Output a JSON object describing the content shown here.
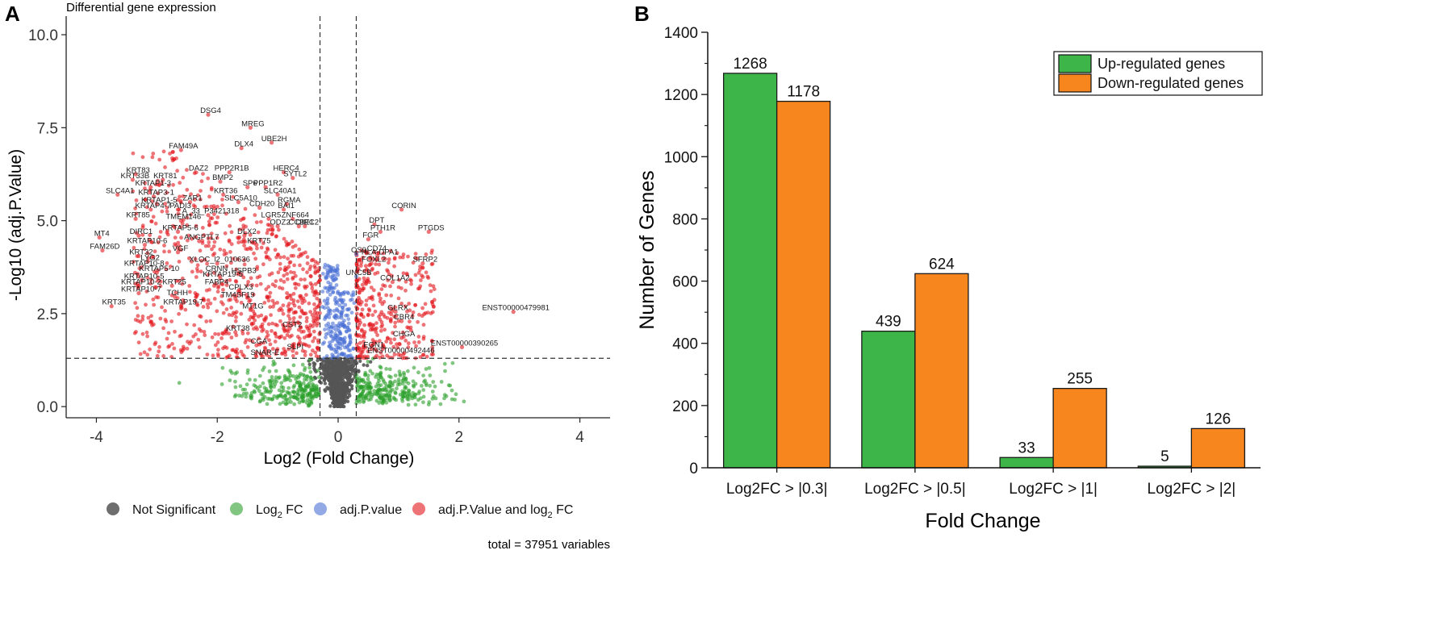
{
  "panels": {
    "a": {
      "label": "A",
      "title": "Differential gene expression",
      "xlabel": "Log2 (Fold Change)",
      "ylabel": "-Log10 (adj.P.Value)",
      "caption": "total = 37951 variables",
      "legend": [
        {
          "key": "ns",
          "label": "Not Significant",
          "color": "#555555"
        },
        {
          "key": "fc",
          "label": "Log",
          "sub": "2",
          "suffix": " FC",
          "color": "#2ca02c"
        },
        {
          "key": "p",
          "label": "adj.P.value",
          "color": "#4a6fd6"
        },
        {
          "key": "both",
          "label": "adj.P.Value and log",
          "sub": "2",
          "suffix": " FC",
          "color": "#e3151c"
        }
      ]
    },
    "b": {
      "label": "B",
      "legend": [
        "Up-regulated genes",
        "Down-regulated genes"
      ]
    }
  },
  "chart_data": [
    {
      "type": "scatter",
      "title": "Differential gene expression",
      "xlabel": "Log2 (Fold Change)",
      "ylabel": "-Log10 (adj.P.Value)",
      "xlim": [
        -4.5,
        4.5
      ],
      "ylim": [
        -0.3,
        10.5
      ],
      "xticks": [
        -4,
        -2,
        0,
        2,
        4
      ],
      "xtick_labels": [
        "-4",
        "-2",
        "0",
        "2",
        "4"
      ],
      "yticks": [
        0.0,
        2.5,
        5.0,
        7.5,
        10.0
      ],
      "ytick_labels": [
        "0.0",
        "2.5",
        "5.0",
        "7.5",
        "10.0"
      ],
      "fc_cutoff": 0.3,
      "p_cutoff": 1.3,
      "total_variables": 37951,
      "labeled_genes": [
        {
          "gene": "DSG4",
          "x": -2.15,
          "y": 7.85
        },
        {
          "gene": "MREG",
          "x": -1.45,
          "y": 7.5
        },
        {
          "gene": "UBE2H",
          "x": -1.1,
          "y": 7.1
        },
        {
          "gene": "DLX4",
          "x": -1.6,
          "y": 6.95
        },
        {
          "gene": "FAM49A",
          "x": -2.6,
          "y": 6.9
        },
        {
          "gene": "HERC4",
          "x": -0.9,
          "y": 6.3
        },
        {
          "gene": "DAZ2",
          "x": -2.35,
          "y": 6.3
        },
        {
          "gene": "PPP2R1B",
          "x": -1.8,
          "y": 6.3
        },
        {
          "gene": "KRT83",
          "x": -3.35,
          "y": 6.25
        },
        {
          "gene": "KRT33B",
          "x": -3.4,
          "y": 6.1
        },
        {
          "gene": "KRT81",
          "x": -2.9,
          "y": 6.1
        },
        {
          "gene": "SYTL2",
          "x": -0.75,
          "y": 6.15
        },
        {
          "gene": "BMP2",
          "x": -1.95,
          "y": 6.05
        },
        {
          "gene": "SP6",
          "x": -1.5,
          "y": 5.9
        },
        {
          "gene": "PPP1R2",
          "x": -1.2,
          "y": 5.9
        },
        {
          "gene": "KRTAP1-3",
          "x": -3.1,
          "y": 5.9
        },
        {
          "gene": "KRT36",
          "x": -1.9,
          "y": 5.7
        },
        {
          "gene": "SLC40A1",
          "x": -1.0,
          "y": 5.7
        },
        {
          "gene": "SLC4A1",
          "x": -3.65,
          "y": 5.7
        },
        {
          "gene": "KRTAP3-1",
          "x": -3.05,
          "y": 5.65
        },
        {
          "gene": "ZAR1",
          "x": -2.45,
          "y": 5.5
        },
        {
          "gene": "SLC5A10",
          "x": -1.65,
          "y": 5.5
        },
        {
          "gene": "RGMA",
          "x": -0.85,
          "y": 5.45
        },
        {
          "gene": "KRTAP1-5",
          "x": -3.0,
          "y": 5.45
        },
        {
          "gene": "CDH20",
          "x": -1.3,
          "y": 5.35
        },
        {
          "gene": "BAI1",
          "x": -0.9,
          "y": 5.3
        },
        {
          "gene": "KRTAP4-7",
          "x": -3.1,
          "y": 5.3
        },
        {
          "gene": "PADI3",
          "x": -2.65,
          "y": 5.3
        },
        {
          "gene": "CORIN",
          "x": 1.05,
          "y": 5.3
        },
        {
          "gene": "A_33_P3421318",
          "x": -2.15,
          "y": 5.15
        },
        {
          "gene": "LGR5",
          "x": -1.15,
          "y": 5.05
        },
        {
          "gene": "ZNF664",
          "x": -0.75,
          "y": 5.05
        },
        {
          "gene": "KRT85",
          "x": -3.35,
          "y": 5.05
        },
        {
          "gene": "TMEM146",
          "x": -2.6,
          "y": 5.0
        },
        {
          "gene": "DPT",
          "x": 0.6,
          "y": 4.9
        },
        {
          "gene": "ODZ2",
          "x": -1.0,
          "y": 4.85
        },
        {
          "gene": "CCBE1",
          "x": -0.65,
          "y": 4.85
        },
        {
          "gene": "DIRC2",
          "x": -0.55,
          "y": 4.85
        },
        {
          "gene": "PTGDS",
          "x": 1.5,
          "y": 4.7
        },
        {
          "gene": "PTH1R",
          "x": 0.7,
          "y": 4.7
        },
        {
          "gene": "KRTAP5-6",
          "x": -2.65,
          "y": 4.7
        },
        {
          "gene": "DLX2",
          "x": -1.55,
          "y": 4.6
        },
        {
          "gene": "MT4",
          "x": -3.95,
          "y": 4.55
        },
        {
          "gene": "DIRC1",
          "x": -3.3,
          "y": 4.6
        },
        {
          "gene": "FGR",
          "x": 0.5,
          "y": 4.5
        },
        {
          "gene": "ANGPTL7",
          "x": -2.3,
          "y": 4.45
        },
        {
          "gene": "KRTAP10-6",
          "x": -3.2,
          "y": 4.35
        },
        {
          "gene": "KRT75",
          "x": -1.35,
          "y": 4.35
        },
        {
          "gene": "FAM26D",
          "x": -3.9,
          "y": 4.2
        },
        {
          "gene": "VGF",
          "x": -2.65,
          "y": 4.15
        },
        {
          "gene": "CD74",
          "x": 0.6,
          "y": 4.15
        },
        {
          "gene": "SFRP2",
          "x": 1.4,
          "y": 3.85
        },
        {
          "gene": "OS9",
          "x": 0.3,
          "y": 4.1
        },
        {
          "gene": "HLA-DPA1",
          "x": 0.65,
          "y": 4.05
        },
        {
          "gene": "KRT32",
          "x": -3.3,
          "y": 4.05
        },
        {
          "gene": "LYG2",
          "x": -3.15,
          "y": 3.9
        },
        {
          "gene": "FOXL2",
          "x": 0.55,
          "y": 3.85
        },
        {
          "gene": "XLOC_l2_010636",
          "x": -2.0,
          "y": 3.85
        },
        {
          "gene": "KRTAP10-8",
          "x": -3.25,
          "y": 3.75
        },
        {
          "gene": "CRNN",
          "x": -2.05,
          "y": 3.6
        },
        {
          "gene": "KRTAP5-10",
          "x": -3.0,
          "y": 3.6
        },
        {
          "gene": "UNC5B",
          "x": 0.3,
          "y": 3.5
        },
        {
          "gene": "HSPB3",
          "x": -1.6,
          "y": 3.55
        },
        {
          "gene": "COL1A2",
          "x": 0.9,
          "y": 3.35
        },
        {
          "gene": "KRTAP19-5",
          "x": -1.95,
          "y": 3.45
        },
        {
          "gene": "KRTAP10-5",
          "x": -3.25,
          "y": 3.4
        },
        {
          "gene": "FABP4",
          "x": -2.05,
          "y": 3.25
        },
        {
          "gene": "KRTAP10-2",
          "x": -3.3,
          "y": 3.25
        },
        {
          "gene": "KRT25",
          "x": -2.75,
          "y": 3.25
        },
        {
          "gene": "CPLX3",
          "x": -1.65,
          "y": 3.1
        },
        {
          "gene": "KRTAP10-7",
          "x": -3.3,
          "y": 3.05
        },
        {
          "gene": "TCHH",
          "x": -2.7,
          "y": 2.95
        },
        {
          "gene": "TM4SF19",
          "x": -1.7,
          "y": 2.9
        },
        {
          "gene": "KRTAP19-7",
          "x": -2.6,
          "y": 2.7
        },
        {
          "gene": "KRT35",
          "x": -3.75,
          "y": 2.7
        },
        {
          "gene": "ENST00000479981",
          "x": 2.9,
          "y": 2.55
        },
        {
          "gene": "MT1G",
          "x": -1.45,
          "y": 2.6
        },
        {
          "gene": "GLRX",
          "x": 0.95,
          "y": 2.55
        },
        {
          "gene": "CBR4",
          "x": 1.05,
          "y": 2.3
        },
        {
          "gene": "CST2",
          "x": -0.8,
          "y": 2.1
        },
        {
          "gene": "KRT38",
          "x": -1.7,
          "y": 2.0
        },
        {
          "gene": "CHGA",
          "x": 1.05,
          "y": 1.85
        },
        {
          "gene": "ENST00000390265",
          "x": 2.05,
          "y": 1.6
        },
        {
          "gene": "ENST00000492446",
          "x": 1.0,
          "y": 1.4
        },
        {
          "gene": "EGN1",
          "x": 0.55,
          "y": 1.55
        },
        {
          "gene": "CGA",
          "x": -1.35,
          "y": 1.65
        },
        {
          "gene": "SLPI",
          "x": -0.75,
          "y": 1.5
        },
        {
          "gene": "SNAR-E",
          "x": -1.25,
          "y": 1.35
        }
      ]
    },
    {
      "type": "bar",
      "title": "",
      "xlabel": "Fold Change",
      "ylabel": "Number of Genes",
      "ylim": [
        0,
        1400
      ],
      "yticks": [
        0,
        200,
        400,
        600,
        800,
        1000,
        1200,
        1400
      ],
      "categories": [
        "Log2FC > |0.3|",
        "Log2FC > |0.5|",
        "Log2FC > |1|",
        "Log2FC > |2|"
      ],
      "series": [
        {
          "name": "Up-regulated genes",
          "color": "#3db549",
          "values": [
            1268,
            439,
            33,
            5
          ]
        },
        {
          "name": "Down-regulated genes",
          "color": "#f7861e",
          "values": [
            1178,
            624,
            255,
            126
          ]
        }
      ],
      "legend_position": "top-right"
    }
  ]
}
